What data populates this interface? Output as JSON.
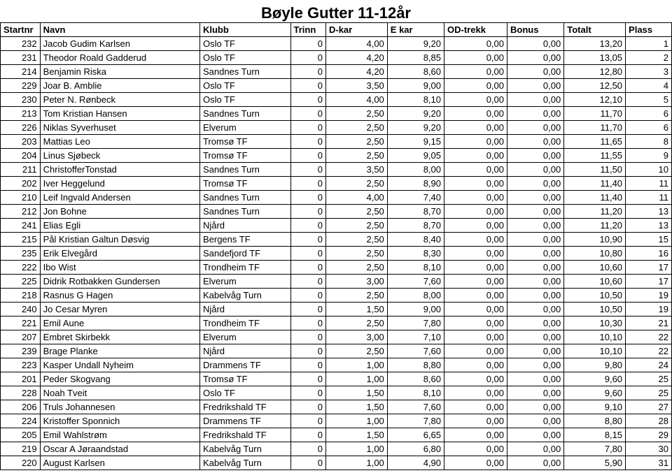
{
  "title": "Bøyle Gutter 11-12år",
  "table": {
    "columns": [
      "Startnr",
      "Navn",
      "Klubb",
      "Trinn",
      "D-kar",
      "E kar",
      "OD-trekk",
      "Bonus",
      "Totalt",
      "Plass"
    ],
    "col_align": [
      "right",
      "left",
      "left",
      "right",
      "right",
      "right",
      "right",
      "right",
      "right",
      "right"
    ],
    "header_fontsize": 13,
    "cell_fontsize": 13,
    "border_color": "#000000",
    "background_color": "#ffffff",
    "rows": [
      [
        "232",
        "Jacob Gudim Karlsen",
        "Oslo TF",
        "0",
        "4,00",
        "9,20",
        "0,00",
        "0,00",
        "13,20",
        "1"
      ],
      [
        "231",
        "Theodor Roald  Gadderud",
        "Oslo TF",
        "0",
        "4,20",
        "8,85",
        "0,00",
        "0,00",
        "13,05",
        "2"
      ],
      [
        "214",
        "Benjamin Riska",
        "Sandnes Turn",
        "0",
        "4,20",
        "8,60",
        "0,00",
        "0,00",
        "12,80",
        "3"
      ],
      [
        "229",
        "Joar B. Amblie",
        "Oslo TF",
        "0",
        "3,50",
        "9,00",
        "0,00",
        "0,00",
        "12,50",
        "4"
      ],
      [
        "230",
        "Peter N. Rønbeck",
        "Oslo TF",
        "0",
        "4,00",
        "8,10",
        "0,00",
        "0,00",
        "12,10",
        "5"
      ],
      [
        "213",
        "Tom Kristian Hansen",
        "Sandnes Turn",
        "0",
        "2,50",
        "9,20",
        "0,00",
        "0,00",
        "11,70",
        "6"
      ],
      [
        "226",
        "Niklas Syverhuset",
        "Elverum",
        "0",
        "2,50",
        "9,20",
        "0,00",
        "0,00",
        "11,70",
        "6"
      ],
      [
        "203",
        "Mattias Leo",
        "Tromsø TF",
        "0",
        "2,50",
        "9,15",
        "0,00",
        "0,00",
        "11,65",
        "8"
      ],
      [
        "204",
        "Linus Sjøbeck",
        "Tromsø TF",
        "0",
        "2,50",
        "9,05",
        "0,00",
        "0,00",
        "11,55",
        "9"
      ],
      [
        "211",
        "ChristofferTonstad",
        "Sandnes Turn",
        "0",
        "3,50",
        "8,00",
        "0,00",
        "0,00",
        "11,50",
        "10"
      ],
      [
        "202",
        "Iver Heggelund",
        "Tromsø TF",
        "0",
        "2,50",
        "8,90",
        "0,00",
        "0,00",
        "11,40",
        "11"
      ],
      [
        "210",
        "Leif Ingvald Andersen",
        "Sandnes Turn",
        "0",
        "4,00",
        "7,40",
        "0,00",
        "0,00",
        "11,40",
        "11"
      ],
      [
        "212",
        "Jon Bohne",
        "Sandnes Turn",
        "0",
        "2,50",
        "8,70",
        "0,00",
        "0,00",
        "11,20",
        "13"
      ],
      [
        "241",
        "Elias Egli",
        "Njård",
        "0",
        "2,50",
        "8,70",
        "0,00",
        "0,00",
        "11,20",
        "13"
      ],
      [
        "215",
        "Pål Kristian Galtun Døsvig",
        "Bergens TF",
        "0",
        "2,50",
        "8,40",
        "0,00",
        "0,00",
        "10,90",
        "15"
      ],
      [
        "235",
        "Erik Elvegård",
        "Sandefjord TF",
        "0",
        "2,50",
        "8,30",
        "0,00",
        "0,00",
        "10,80",
        "16"
      ],
      [
        "222",
        "Ibo Wist",
        "Trondheim TF",
        "0",
        "2,50",
        "8,10",
        "0,00",
        "0,00",
        "10,60",
        "17"
      ],
      [
        "225",
        "Didrik Rotbakken Gundersen",
        "Elverum",
        "0",
        "3,00",
        "7,60",
        "0,00",
        "0,00",
        "10,60",
        "17"
      ],
      [
        "218",
        "Rasnus G Hagen",
        "Kabelvåg Turn",
        "0",
        "2,50",
        "8,00",
        "0,00",
        "0,00",
        "10,50",
        "19"
      ],
      [
        "240",
        "Jo Cesar Myren",
        "Njård",
        "0",
        "1,50",
        "9,00",
        "0,00",
        "0,00",
        "10,50",
        "19"
      ],
      [
        "221",
        "Emil Aune",
        "Trondheim TF",
        "0",
        "2,50",
        "7,80",
        "0,00",
        "0,00",
        "10,30",
        "21"
      ],
      [
        "207",
        "Embret Skirbekk",
        "Elverum",
        "0",
        "3,00",
        "7,10",
        "0,00",
        "0,00",
        "10,10",
        "22"
      ],
      [
        "239",
        "Brage Planke",
        "Njård",
        "0",
        "2,50",
        "7,60",
        "0,00",
        "0,00",
        "10,10",
        "22"
      ],
      [
        "223",
        "Kasper Undall Nyheim",
        "Drammens TF",
        "0",
        "1,00",
        "8,80",
        "0,00",
        "0,00",
        "9,80",
        "24"
      ],
      [
        "201",
        "Peder Skogvang",
        "Tromsø TF",
        "0",
        "1,00",
        "8,60",
        "0,00",
        "0,00",
        "9,60",
        "25"
      ],
      [
        "228",
        "Noah Tveit",
        "Oslo TF",
        "0",
        "1,50",
        "8,10",
        "0,00",
        "0,00",
        "9,60",
        "25"
      ],
      [
        "206",
        "Truls Johannesen",
        "Fredrikshald TF",
        "0",
        "1,50",
        "7,60",
        "0,00",
        "0,00",
        "9,10",
        "27"
      ],
      [
        "224",
        "Kristoffer Sponnich",
        "Drammens TF",
        "0",
        "1,00",
        "7,80",
        "0,00",
        "0,00",
        "8,80",
        "28"
      ],
      [
        "205",
        "Emil Wahlstrøm",
        "Fredrikshald TF",
        "0",
        "1,50",
        "6,65",
        "0,00",
        "0,00",
        "8,15",
        "29"
      ],
      [
        "219",
        "Oscar A Jøraandstad",
        "Kabelvåg Turn",
        "0",
        "1,00",
        "6,80",
        "0,00",
        "0,00",
        "7,80",
        "30"
      ],
      [
        "220",
        "August Karlsen",
        "Kabelvåg Turn",
        "0",
        "1,00",
        "4,90",
        "0,00",
        "0,00",
        "5,90",
        "31"
      ]
    ]
  }
}
